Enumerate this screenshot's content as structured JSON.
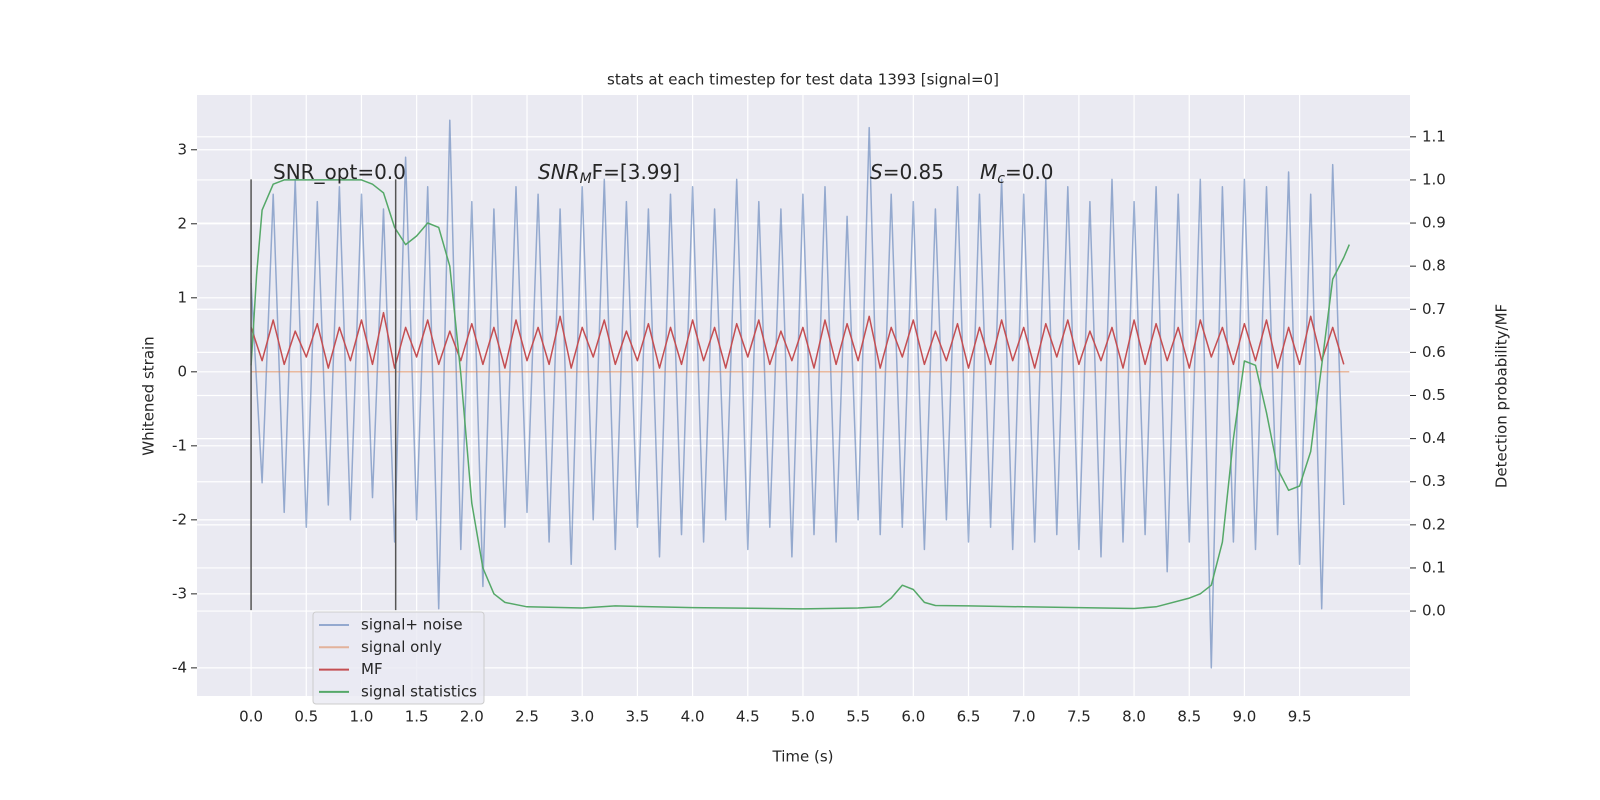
{
  "chart_data": {
    "type": "line",
    "title": "stats at each timestep for test data 1393 [signal=0]",
    "xlabel": "Time (s)",
    "ylabel": "Whitened strain",
    "y2label": "Detection probability/MF",
    "xlim": [
      -0.49,
      10.5
    ],
    "ylim": [
      -4.38,
      3.74
    ],
    "y2lim": [
      -0.197,
      1.197
    ],
    "xticks": [
      {
        "value": 0,
        "label": "0.0"
      },
      0.5,
      {
        "value": 1,
        "label": "1.0"
      },
      1.5,
      {
        "value": 2,
        "label": "2.0"
      },
      2.5,
      {
        "value": 3,
        "label": "3.0"
      },
      3.5,
      {
        "value": 4,
        "label": "4.0"
      },
      4.5,
      {
        "value": 5,
        "label": "5.0"
      },
      5.5,
      {
        "value": 6,
        "label": "6.0"
      },
      6.5,
      {
        "value": 7,
        "label": "7.0"
      },
      7.5,
      {
        "value": 8,
        "label": "8.0"
      },
      8.5,
      {
        "value": 9,
        "label": "9.0"
      },
      9.5
    ],
    "yticks": [
      -4,
      -3,
      -2,
      -1,
      0,
      1,
      2,
      3
    ],
    "y2ticks": [
      {
        "value": 0,
        "label": "0.0"
      },
      0.1,
      0.2,
      0.3,
      0.4,
      0.5,
      0.6,
      0.7,
      0.8,
      0.9,
      {
        "value": 1,
        "label": "1.0"
      },
      1.1
    ],
    "grid": true,
    "legend": "lower left",
    "annotations": [
      {
        "parts": [
          "SNR_opt=0.0"
        ]
      },
      {
        "parts": [
          "SNR",
          "M",
          "F=[3.99]"
        ]
      },
      {
        "parts": [
          "S",
          "=0.85"
        ]
      },
      {
        "parts": [
          "M",
          "c",
          "=0.0"
        ]
      }
    ],
    "vlines": {
      "x": [
        0,
        1.31
      ],
      "ymin": -3.22,
      "ymax": 2.6
    },
    "series": [
      {
        "name": "signal+ noise",
        "color": "#4c72b0",
        "x": [
          0.0,
          0.1,
          0.2,
          0.3,
          0.4,
          0.5,
          0.6,
          0.7,
          0.8,
          0.9,
          1.0,
          1.1,
          1.2,
          1.3,
          1.4,
          1.5,
          1.6,
          1.7,
          1.8,
          1.9,
          2.0,
          2.1,
          2.2,
          2.3,
          2.4,
          2.5,
          2.6,
          2.7,
          2.8,
          2.9,
          3.0,
          3.1,
          3.2,
          3.3,
          3.4,
          3.5,
          3.6,
          3.7,
          3.8,
          3.9,
          4.0,
          4.1,
          4.2,
          4.3,
          4.4,
          4.5,
          4.6,
          4.7,
          4.8,
          4.9,
          5.0,
          5.1,
          5.2,
          5.3,
          5.4,
          5.5,
          5.6,
          5.7,
          5.8,
          5.9,
          6.0,
          6.1,
          6.2,
          6.3,
          6.4,
          6.5,
          6.6,
          6.7,
          6.8,
          6.9,
          7.0,
          7.1,
          7.2,
          7.3,
          7.4,
          7.5,
          7.6,
          7.7,
          7.8,
          7.9,
          8.0,
          8.1,
          8.2,
          8.3,
          8.4,
          8.5,
          8.6,
          8.7,
          8.8,
          8.9,
          9.0,
          9.1,
          9.2,
          9.3,
          9.4,
          9.5,
          9.6,
          9.7,
          9.8,
          9.9
        ],
        "values": [
          1.2,
          -1.5,
          2.4,
          -1.9,
          2.6,
          -2.1,
          2.3,
          -1.8,
          2.5,
          -2.0,
          2.4,
          -1.7,
          2.2,
          -2.3,
          2.9,
          -2.0,
          2.5,
          -3.2,
          3.4,
          -2.4,
          2.3,
          -2.9,
          2.2,
          -2.1,
          2.5,
          -1.9,
          2.4,
          -2.3,
          2.2,
          -2.6,
          2.5,
          -2.0,
          2.6,
          -2.4,
          2.3,
          -2.1,
          2.2,
          -2.5,
          2.4,
          -2.2,
          2.5,
          -2.3,
          2.2,
          -2.0,
          2.6,
          -2.4,
          2.3,
          -2.1,
          2.2,
          -2.5,
          2.4,
          -2.2,
          2.5,
          -2.3,
          2.1,
          -2.0,
          3.3,
          -2.2,
          2.4,
          -2.1,
          2.3,
          -2.4,
          2.2,
          -2.0,
          2.5,
          -2.3,
          2.4,
          -2.1,
          2.6,
          -2.4,
          2.4,
          -2.3,
          2.6,
          -2.2,
          2.5,
          -2.4,
          2.3,
          -2.5,
          2.6,
          -2.3,
          2.3,
          -2.2,
          2.5,
          -2.7,
          2.4,
          -2.3,
          2.6,
          -4.0,
          2.5,
          -2.3,
          2.6,
          -2.4,
          2.5,
          -2.2,
          2.7,
          -2.6,
          2.4,
          -3.2,
          2.8,
          -1.8
        ]
      },
      {
        "name": "signal only",
        "color": "#dd8452",
        "x": [
          0.0,
          9.95
        ],
        "values": [
          0,
          0
        ]
      },
      {
        "name": "MF",
        "color": "#c44e52",
        "x": [
          0.0,
          0.1,
          0.2,
          0.3,
          0.4,
          0.5,
          0.6,
          0.7,
          0.8,
          0.9,
          1.0,
          1.1,
          1.2,
          1.3,
          1.4,
          1.5,
          1.6,
          1.7,
          1.8,
          1.9,
          2.0,
          2.1,
          2.2,
          2.3,
          2.4,
          2.5,
          2.6,
          2.7,
          2.8,
          2.9,
          3.0,
          3.1,
          3.2,
          3.3,
          3.4,
          3.5,
          3.6,
          3.7,
          3.8,
          3.9,
          4.0,
          4.1,
          4.2,
          4.3,
          4.4,
          4.5,
          4.6,
          4.7,
          4.8,
          4.9,
          5.0,
          5.1,
          5.2,
          5.3,
          5.4,
          5.5,
          5.6,
          5.7,
          5.8,
          5.9,
          6.0,
          6.1,
          6.2,
          6.3,
          6.4,
          6.5,
          6.6,
          6.7,
          6.8,
          6.9,
          7.0,
          7.1,
          7.2,
          7.3,
          7.4,
          7.5,
          7.6,
          7.7,
          7.8,
          7.9,
          8.0,
          8.1,
          8.2,
          8.3,
          8.4,
          8.5,
          8.6,
          8.7,
          8.8,
          8.9,
          9.0,
          9.1,
          9.2,
          9.3,
          9.4,
          9.5,
          9.6,
          9.7,
          9.8,
          9.9
        ],
        "values": [
          0.6,
          0.15,
          0.7,
          0.1,
          0.55,
          0.2,
          0.65,
          0.05,
          0.6,
          0.15,
          0.7,
          0.1,
          0.8,
          0.05,
          0.6,
          0.2,
          0.7,
          0.1,
          0.55,
          0.15,
          0.65,
          0.1,
          0.6,
          0.05,
          0.7,
          0.15,
          0.6,
          0.1,
          0.75,
          0.05,
          0.6,
          0.2,
          0.7,
          0.1,
          0.55,
          0.15,
          0.65,
          0.05,
          0.6,
          0.1,
          0.7,
          0.15,
          0.6,
          0.05,
          0.65,
          0.2,
          0.7,
          0.1,
          0.55,
          0.15,
          0.6,
          0.05,
          0.7,
          0.1,
          0.65,
          0.15,
          0.75,
          0.05,
          0.6,
          0.2,
          0.7,
          0.1,
          0.55,
          0.15,
          0.65,
          0.05,
          0.6,
          0.1,
          0.7,
          0.15,
          0.6,
          0.05,
          0.65,
          0.2,
          0.7,
          0.1,
          0.55,
          0.15,
          0.6,
          0.05,
          0.7,
          0.1,
          0.65,
          0.15,
          0.6,
          0.05,
          0.7,
          0.2,
          0.6,
          0.1,
          0.65,
          0.15,
          0.7,
          0.05,
          0.6,
          0.1,
          0.75,
          0.15,
          0.6,
          0.1
        ]
      },
      {
        "name": "signal statistics",
        "color": "#55a868",
        "axis": "y2",
        "x": [
          0,
          0.05,
          0.1,
          0.2,
          0.3,
          0.5,
          0.8,
          1.0,
          1.1,
          1.2,
          1.3,
          1.4,
          1.5,
          1.6,
          1.7,
          1.8,
          1.9,
          2.0,
          2.1,
          2.2,
          2.3,
          2.5,
          3.0,
          3.3,
          4.0,
          5.0,
          5.5,
          5.7,
          5.8,
          5.9,
          6.0,
          6.1,
          6.2,
          6.5,
          7.0,
          8.0,
          8.2,
          8.5,
          8.6,
          8.7,
          8.8,
          8.9,
          9.0,
          9.1,
          9.2,
          9.3,
          9.4,
          9.5,
          9.6,
          9.7,
          9.8,
          9.9,
          9.95
        ],
        "values": [
          0.57,
          0.78,
          0.93,
          0.99,
          1.0,
          1.0,
          1.0,
          1.0,
          0.99,
          0.97,
          0.89,
          0.85,
          0.87,
          0.9,
          0.89,
          0.8,
          0.55,
          0.25,
          0.1,
          0.04,
          0.02,
          0.01,
          0.007,
          0.012,
          0.008,
          0.005,
          0.007,
          0.01,
          0.03,
          0.06,
          0.05,
          0.02,
          0.013,
          0.012,
          0.01,
          0.006,
          0.01,
          0.03,
          0.04,
          0.06,
          0.16,
          0.4,
          0.58,
          0.57,
          0.46,
          0.33,
          0.28,
          0.29,
          0.37,
          0.57,
          0.77,
          0.82,
          0.85
        ]
      }
    ]
  }
}
